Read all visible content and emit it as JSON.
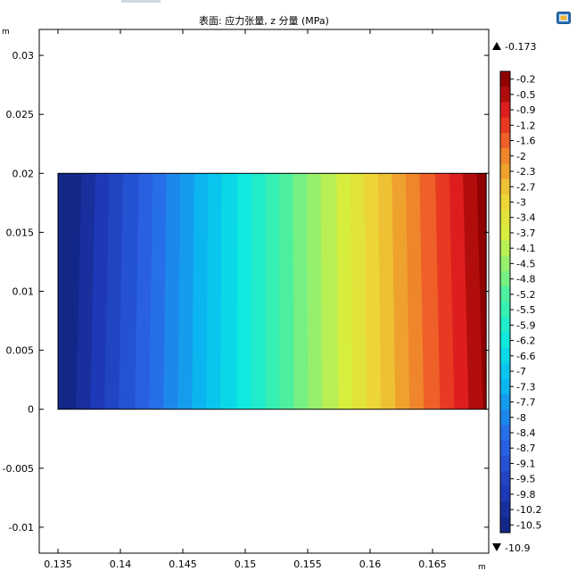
{
  "chart_data": {
    "type": "heatmap",
    "title": "表面: 应力张量, z 分量 (MPa)",
    "x_unit": "m",
    "y_unit": "m",
    "xlim": [
      0.1335,
      0.1695
    ],
    "ylim": [
      -0.0122,
      0.0322
    ],
    "x_ticks": [
      "0.135",
      "0.14",
      "0.145",
      "0.15",
      "0.155",
      "0.16",
      "0.165"
    ],
    "x_tick_values": [
      0.135,
      0.14,
      0.145,
      0.15,
      0.155,
      0.16,
      0.165
    ],
    "y_ticks": [
      "0.03",
      "0.025",
      "0.02",
      "0.015",
      "0.01",
      "0.005",
      "0",
      "-0.005",
      "-0.01"
    ],
    "y_tick_values": [
      0.03,
      0.025,
      0.02,
      0.015,
      0.01,
      0.005,
      0,
      -0.005,
      -0.01
    ],
    "domain": {
      "x": [
        0.135,
        0.1693
      ],
      "y": [
        0,
        0.02
      ]
    },
    "color_range": {
      "max_label": "-0.173",
      "min_label": "-10.9",
      "max": -0.173,
      "min": -10.9
    },
    "colorbar_labels": [
      "-0.2",
      "-0.5",
      "-0.9",
      "-1.2",
      "-1.6",
      "-2",
      "-2.3",
      "-2.7",
      "-3",
      "-3.4",
      "-3.7",
      "-4.1",
      "-4.5",
      "-4.8",
      "-5.2",
      "-5.5",
      "-5.9",
      "-6.2",
      "-6.6",
      "-7",
      "-7.3",
      "-7.7",
      "-8",
      "-8.4",
      "-8.7",
      "-9.1",
      "-9.5",
      "-9.8",
      "-10.2",
      "-10.5"
    ],
    "colorbar_values": [
      -0.2,
      -0.5,
      -0.9,
      -1.2,
      -1.6,
      -2,
      -2.3,
      -2.7,
      -3,
      -3.4,
      -3.7,
      -4.1,
      -4.5,
      -4.8,
      -5.2,
      -5.5,
      -5.9,
      -6.2,
      -6.6,
      -7,
      -7.3,
      -7.7,
      -8,
      -8.4,
      -8.7,
      -9.1,
      -9.5,
      -9.8,
      -10.2,
      -10.5
    ],
    "colormap": "rainbow",
    "grid": false
  },
  "ui": {
    "fit_icon": "zoom-extents-icon"
  }
}
